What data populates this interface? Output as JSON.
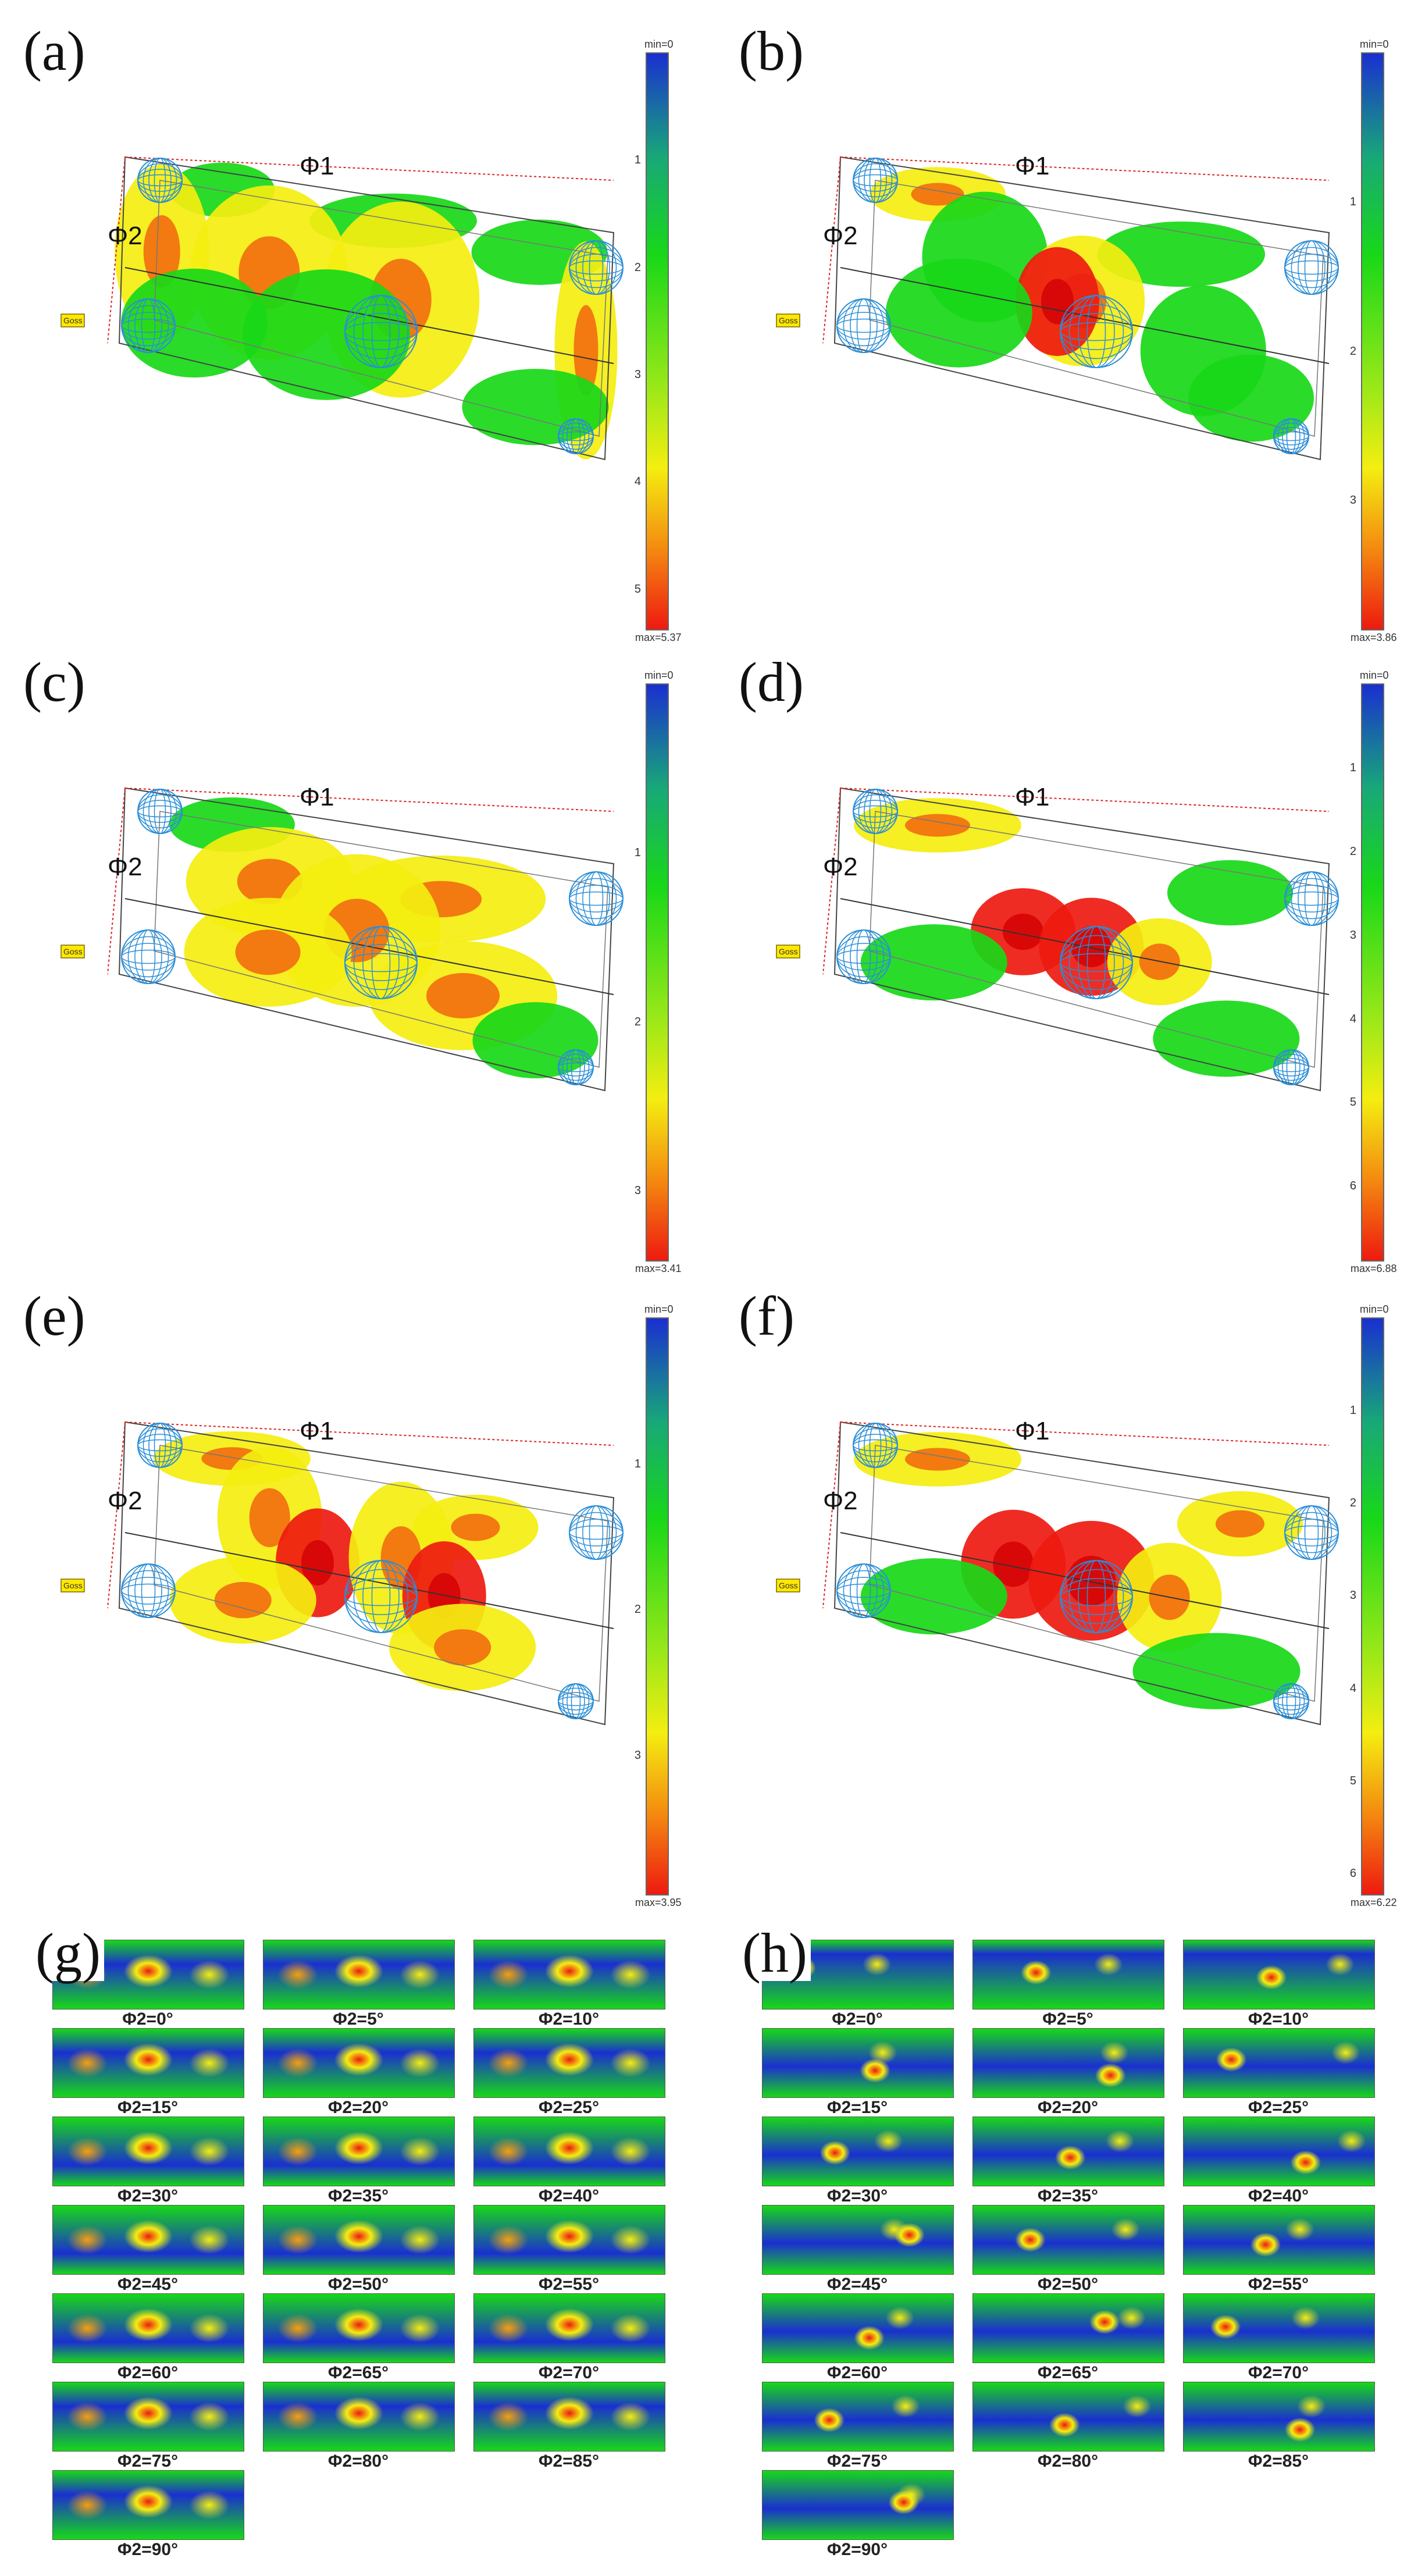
{
  "figure": {
    "panels_3d": [
      {
        "id": "a",
        "label": "(a)",
        "phi1": "Φ1",
        "phi2": "Φ2",
        "goss": "Goss",
        "cbar_min": "min=0",
        "cbar_max": "max=5.37",
        "ticks": [
          "1",
          "2",
          "3",
          "4",
          "5"
        ]
      },
      {
        "id": "b",
        "label": "(b)",
        "phi1": "Φ1",
        "phi2": "Φ2",
        "goss": "Goss",
        "cbar_min": "min=0",
        "cbar_max": "max=3.86",
        "ticks": [
          "1",
          "2",
          "3"
        ]
      },
      {
        "id": "c",
        "label": "(c)",
        "phi1": "Φ1",
        "phi2": "Φ2",
        "goss": "Goss",
        "cbar_min": "min=0",
        "cbar_max": "max=3.41",
        "ticks": [
          "1",
          "2",
          "3"
        ]
      },
      {
        "id": "d",
        "label": "(d)",
        "phi1": "Φ1",
        "phi2": "Φ2",
        "goss": "Goss",
        "cbar_min": "min=0",
        "cbar_max": "max=6.88",
        "ticks": [
          "1",
          "2",
          "3",
          "4",
          "5",
          "6"
        ]
      },
      {
        "id": "e",
        "label": "(e)",
        "phi1": "Φ1",
        "phi2": "Φ2",
        "goss": "Goss",
        "cbar_min": "min=0",
        "cbar_max": "max=3.95",
        "ticks": [
          "1",
          "2",
          "3"
        ]
      },
      {
        "id": "f",
        "label": "(f)",
        "phi1": "Φ1",
        "phi2": "Φ2",
        "goss": "Goss",
        "cbar_min": "min=0",
        "cbar_max": "max=6.22",
        "ticks": [
          "1",
          "2",
          "3",
          "4",
          "5",
          "6"
        ]
      }
    ],
    "sections": [
      {
        "id": "g",
        "label": "(g)",
        "slices": [
          "Φ2=0°",
          "Φ2=5°",
          "Φ2=10°",
          "Φ2=15°",
          "Φ2=20°",
          "Φ2=25°",
          "Φ2=30°",
          "Φ2=35°",
          "Φ2=40°",
          "Φ2=45°",
          "Φ2=50°",
          "Φ2=55°",
          "Φ2=60°",
          "Φ2=65°",
          "Φ2=70°",
          "Φ2=75°",
          "Φ2=80°",
          "Φ2=85°",
          "Φ2=90°"
        ]
      },
      {
        "id": "h",
        "label": "(h)",
        "slices": [
          "Φ2=0°",
          "Φ2=5°",
          "Φ2=10°",
          "Φ2=15°",
          "Φ2=20°",
          "Φ2=25°",
          "Φ2=30°",
          "Φ2=35°",
          "Φ2=40°",
          "Φ2=45°",
          "Φ2=50°",
          "Φ2=55°",
          "Φ2=60°",
          "Φ2=65°",
          "Φ2=70°",
          "Φ2=75°",
          "Φ2=80°",
          "Φ2=85°",
          "Φ2=90°"
        ]
      }
    ],
    "colors": {
      "min": "#1a2fd0",
      "mid": "#18d818",
      "high": "#f4ee10",
      "max": "#ee1a10",
      "wireframe": "#2a8ed8"
    }
  }
}
